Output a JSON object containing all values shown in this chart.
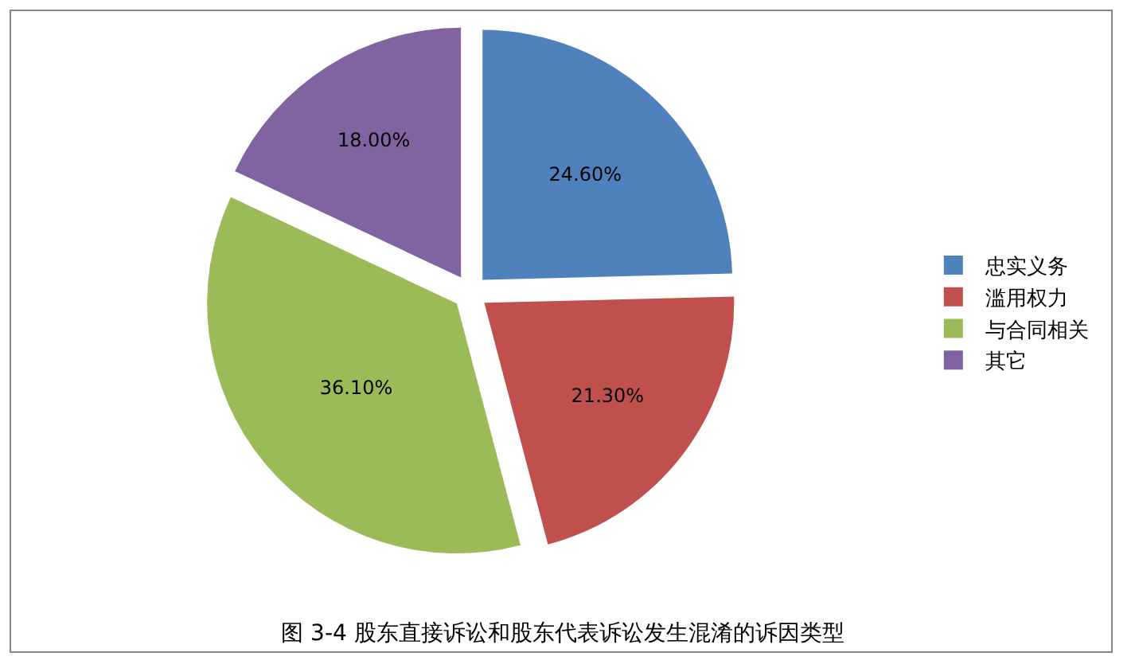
{
  "chart_data": {
    "type": "pie",
    "title": "图 3-4 股东直接诉讼和股东代表诉讼发生混淆的诉因类型",
    "categories": [
      "忠实义务",
      "滥用权力",
      "与合同相关",
      "其它"
    ],
    "values": [
      24.6,
      21.3,
      36.1,
      18.0
    ],
    "value_labels": [
      "24.60%",
      "21.30%",
      "36.10%",
      "18.00%"
    ],
    "colors": [
      "#4f81bd",
      "#c0504d",
      "#9bbb59",
      "#8064a2"
    ],
    "legend": "right"
  }
}
